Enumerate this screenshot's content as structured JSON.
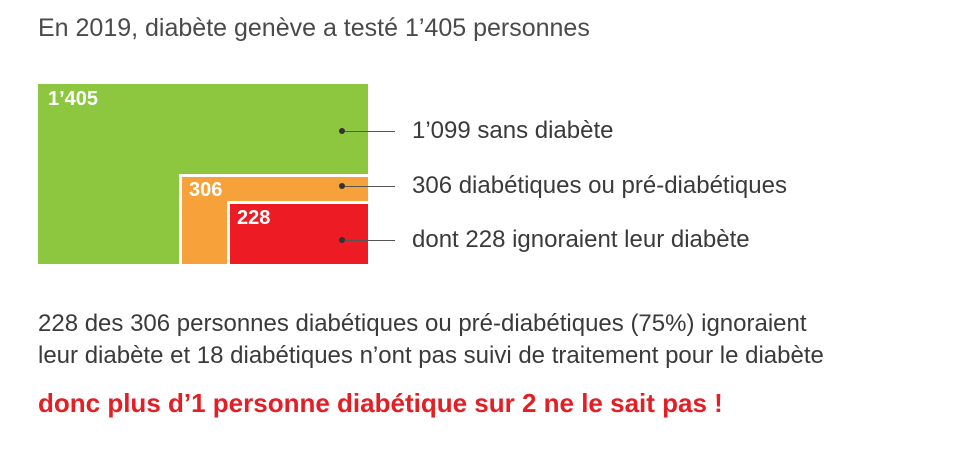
{
  "title": "En 2019, diabète genève a testé 1’405 personnes",
  "chart_data": {
    "type": "nested-rectangles",
    "items": [
      {
        "value": 1405,
        "label": "1’405",
        "legend": "1’099 sans diabète",
        "color": "#8dc63f"
      },
      {
        "value": 306,
        "label": "306",
        "legend": "306 diabétiques ou pré-diabétiques",
        "color": "#f7a13b"
      },
      {
        "value": 228,
        "label": "228",
        "legend": "dont 228 ignoraient leur diabète",
        "color": "#ed1c24"
      }
    ]
  },
  "summary": {
    "line1": "228 des 306 personnes diabétiques ou pré-diabétiques (75%) ignoraient",
    "line2": "leur diabète et 18 diabétiques n’ont pas suivi de traitement pour le diabète"
  },
  "conclusion": {
    "text": "donc plus d’1 personne diabétique sur 2 ne le sait pas !",
    "color": "#e31e24"
  }
}
